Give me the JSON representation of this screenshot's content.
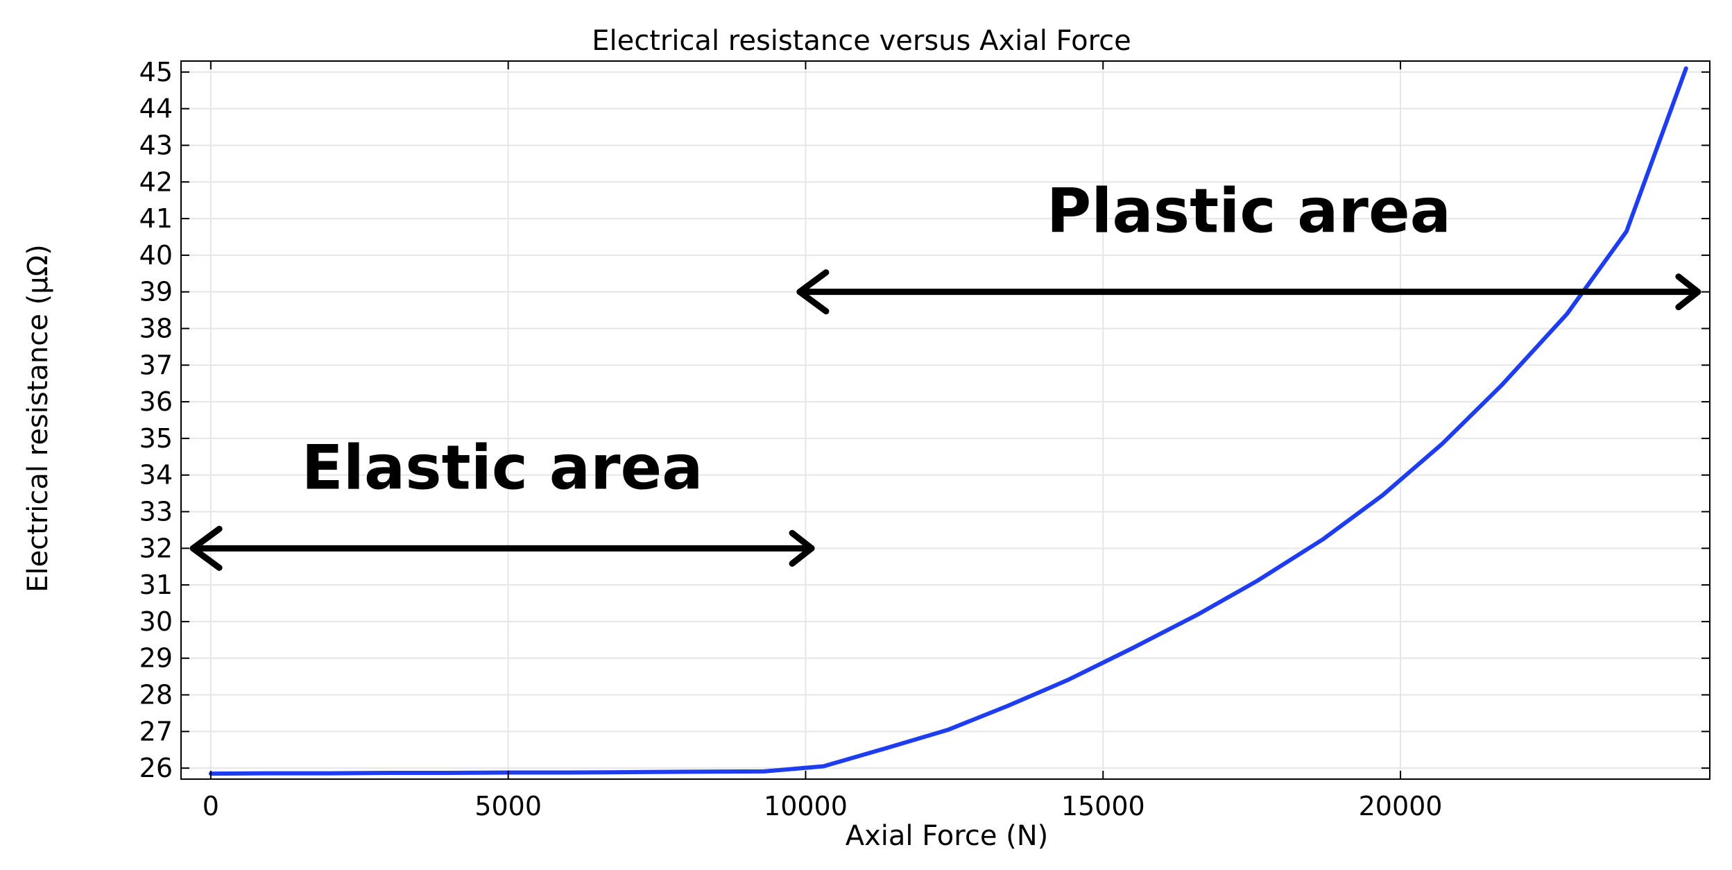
{
  "chart_data": {
    "type": "line",
    "title": "Electrical resistance versus Axial Force",
    "xlabel": "Axial Force (N)",
    "ylabel": "Electrical resistance (µΩ)",
    "xlim": [
      -500,
      25200
    ],
    "ylim": [
      25.7,
      45.3
    ],
    "xticks": [
      0,
      5000,
      10000,
      15000,
      20000
    ],
    "yticks": [
      26,
      27,
      28,
      29,
      30,
      31,
      32,
      33,
      34,
      35,
      36,
      37,
      38,
      39,
      40,
      41,
      42,
      43,
      44,
      45
    ],
    "grid": true,
    "series": [
      {
        "color": "#1f3df0",
        "x": [
          0,
          1000,
          2000,
          3000,
          4000,
          5000,
          6000,
          7000,
          8000,
          9300,
          10300,
          11300,
          12400,
          13400,
          14400,
          15500,
          16600,
          17600,
          18700,
          19700,
          20700,
          21700,
          22800,
          23800,
          24800
        ],
        "y": [
          25.85,
          25.86,
          25.86,
          25.87,
          25.87,
          25.88,
          25.88,
          25.89,
          25.9,
          25.91,
          26.05,
          26.52,
          27.05,
          27.7,
          28.4,
          29.28,
          30.2,
          31.12,
          32.25,
          33.45,
          34.85,
          36.45,
          38.4,
          40.65,
          45.1
        ]
      }
    ],
    "annotations": [
      {
        "text": "Plastic area",
        "x_start": 9900,
        "x_end": 25000,
        "y": 39
      },
      {
        "text": "Elastic area",
        "x_start": -300,
        "x_end": 10100,
        "y": 32
      }
    ]
  }
}
